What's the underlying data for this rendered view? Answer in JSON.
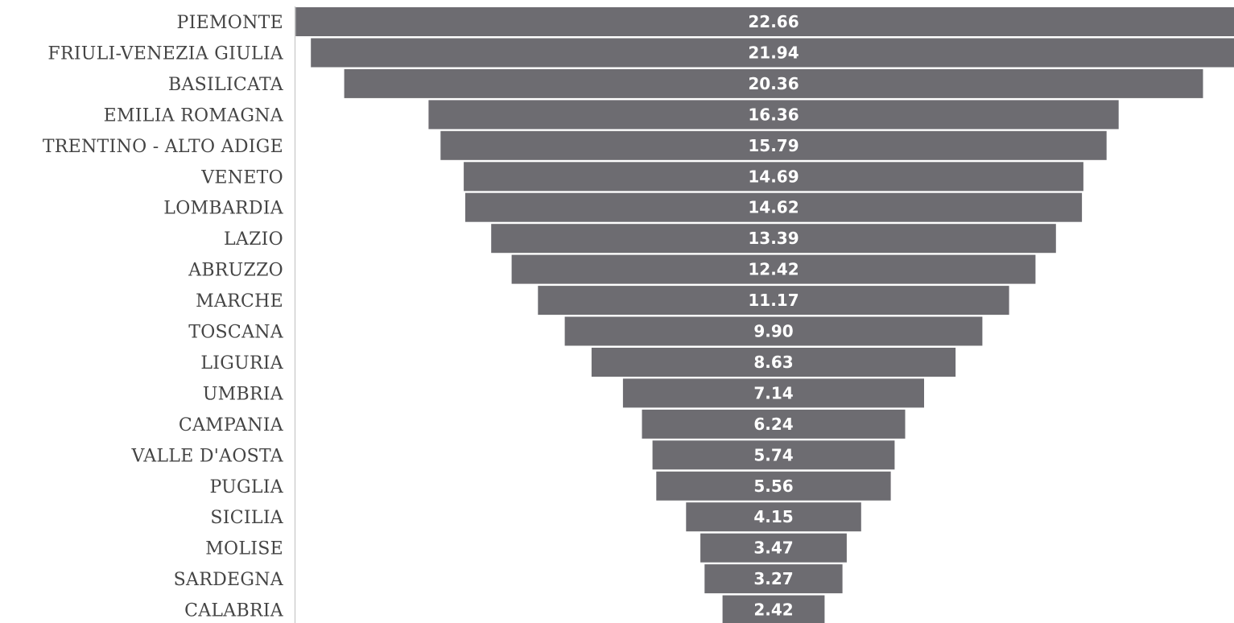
{
  "chart_data": {
    "type": "bar",
    "orientation": "horizontal",
    "layout": "funnel (centered bars)",
    "categories": [
      "PIEMONTE",
      "FRIULI-VENEZIA GIULIA",
      "BASILICATA",
      "EMILIA ROMAGNA",
      "TRENTINO - ALTO ADIGE",
      "VENETO",
      "LOMBARDIA",
      "LAZIO",
      "ABRUZZO",
      "MARCHE",
      "TOSCANA",
      "LIGURIA",
      "UMBRIA",
      "CAMPANIA",
      "VALLE D'AOSTA",
      "PUGLIA",
      "SICILIA",
      "MOLISE",
      "SARDEGNA",
      "CALABRIA"
    ],
    "values": [
      22.66,
      21.94,
      20.36,
      16.36,
      15.79,
      14.69,
      14.62,
      13.39,
      12.42,
      11.17,
      9.9,
      8.63,
      7.14,
      6.24,
      5.74,
      5.56,
      4.15,
      3.47,
      3.27,
      2.42
    ],
    "value_labels": [
      "22.66",
      "21.94",
      "20.36",
      "16.36",
      "15.79",
      "14.69",
      "14.62",
      "13.39",
      "12.42",
      "11.17",
      "9.90",
      "8.63",
      "7.14",
      "6.24",
      "5.74",
      "5.56",
      "4.15",
      "3.47",
      "3.27",
      "2.42"
    ],
    "bar_color": "#6d6c71",
    "title": "",
    "xlabel": "",
    "ylabel": "",
    "grid": false,
    "legend": "none"
  }
}
